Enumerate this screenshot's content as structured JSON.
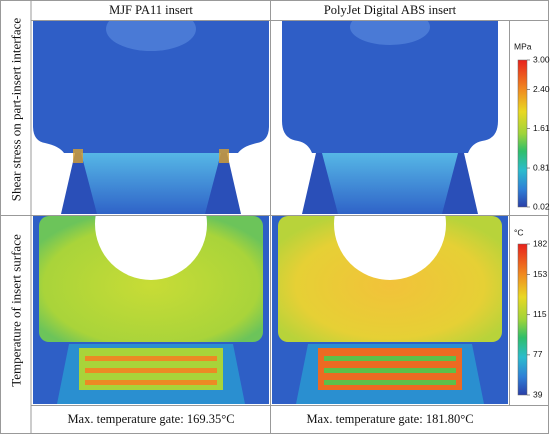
{
  "columns": [
    "MJF PA11 insert",
    "PolyJet Digital ABS insert"
  ],
  "rows": [
    {
      "label": "Shear stress on part-insert interface",
      "colorbar": {
        "unit": "MPa",
        "lim": [
          0.02,
          3
        ],
        "ticks": [
          {
            "value": 3,
            "label": "3.00"
          },
          {
            "value": 2.4,
            "label": "2.40"
          },
          1.61,
          0.81,
          0.02
        ]
      }
    },
    {
      "label": "Temperature of insert surface",
      "colorbar": {
        "unit": "°C",
        "lim": [
          39,
          182
        ],
        "ticks": [
          182,
          153,
          115,
          77,
          39
        ]
      }
    }
  ],
  "captions": [
    "Max. temperature gate: 169.35°C",
    "Max. temperature gate: 181.80°C"
  ]
}
